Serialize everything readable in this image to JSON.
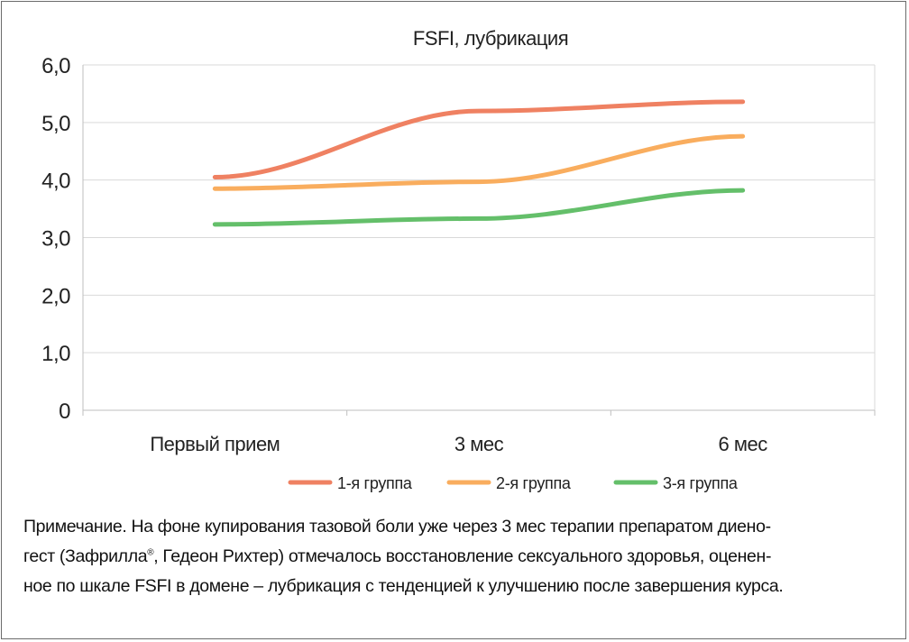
{
  "chart_data": {
    "type": "line",
    "title": "FSFI, лубрикация",
    "categories": [
      "Первый прием",
      "3 мес",
      "6 мес"
    ],
    "y_tick_labels": [
      "0",
      "1,0",
      "2,0",
      "3,0",
      "4,0",
      "5,0",
      "6,0"
    ],
    "ylim": [
      0,
      6
    ],
    "grid": true,
    "legend_position": "bottom",
    "series": [
      {
        "name": "1-я группа",
        "values": [
          4.05,
          5.2,
          5.36
        ],
        "color": "#ef8162"
      },
      {
        "name": "2-я группа",
        "values": [
          3.85,
          3.97,
          4.76
        ],
        "color": "#f9ad5e"
      },
      {
        "name": "3-я группа",
        "values": [
          3.23,
          3.33,
          3.82
        ],
        "color": "#64bf6a"
      }
    ]
  },
  "note": {
    "lines": [
      "Примечание. На фоне купирования тазовой боли уже через 3 мес терапии препаратом диено-",
      "гест (Зафрилла",
      ", Гедеон Рихтер) отмечалось восстановление сексуального здоровья, оценен-",
      "ное по шкале FSFI в домене – лубрикация с тенденцией к улучшению после завершения курса."
    ],
    "registered_mark": "®"
  }
}
